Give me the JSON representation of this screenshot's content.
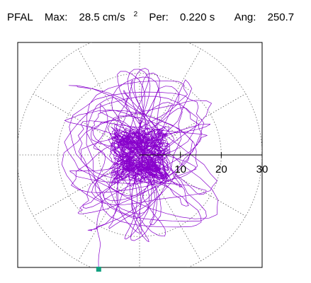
{
  "header": {
    "station": "PFAL",
    "max_label": "Max:",
    "max_value": "28.5 cm/s",
    "max_exp": "2",
    "per_label": "Per:",
    "per_value": "0.220 s",
    "ang_label": "Ang:",
    "ang_value": "250.7"
  },
  "chart_data": {
    "type": "scatter",
    "subtype": "polar-particle-motion",
    "title": "",
    "radial_ticks": [
      "10",
      "20",
      "30"
    ],
    "radial_values": [
      10,
      20,
      30
    ],
    "rmax": 30,
    "grid": "dotted-polar",
    "color": "#8800cc",
    "marker_color": "#11a080",
    "max": 28.5,
    "max_angle_deg": 250.7,
    "end_point": {
      "x": -10.0,
      "y": -28.0
    }
  }
}
